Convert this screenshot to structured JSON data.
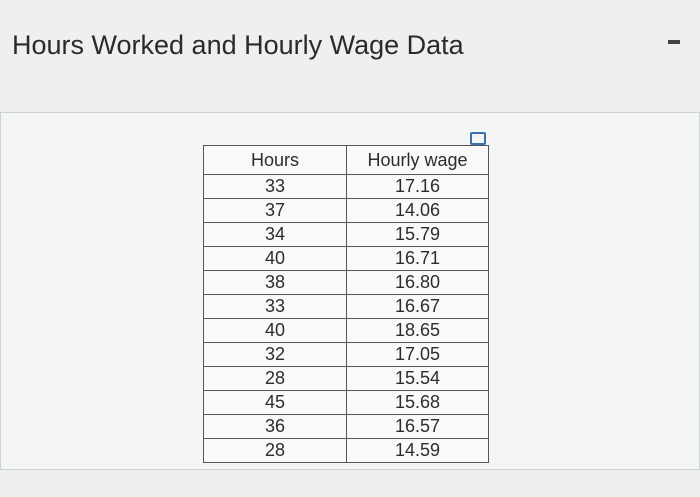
{
  "header": {
    "title": "Hours Worked and Hourly Wage Data"
  },
  "table": {
    "columns": [
      "Hours",
      "Hourly wage"
    ],
    "rows": [
      [
        "33",
        "17.16"
      ],
      [
        "37",
        "14.06"
      ],
      [
        "34",
        "15.79"
      ],
      [
        "40",
        "16.71"
      ],
      [
        "38",
        "16.80"
      ],
      [
        "33",
        "16.67"
      ],
      [
        "40",
        "18.65"
      ],
      [
        "32",
        "17.05"
      ],
      [
        "28",
        "15.54"
      ],
      [
        "45",
        "15.68"
      ],
      [
        "36",
        "16.57"
      ],
      [
        "28",
        "14.59"
      ]
    ]
  }
}
